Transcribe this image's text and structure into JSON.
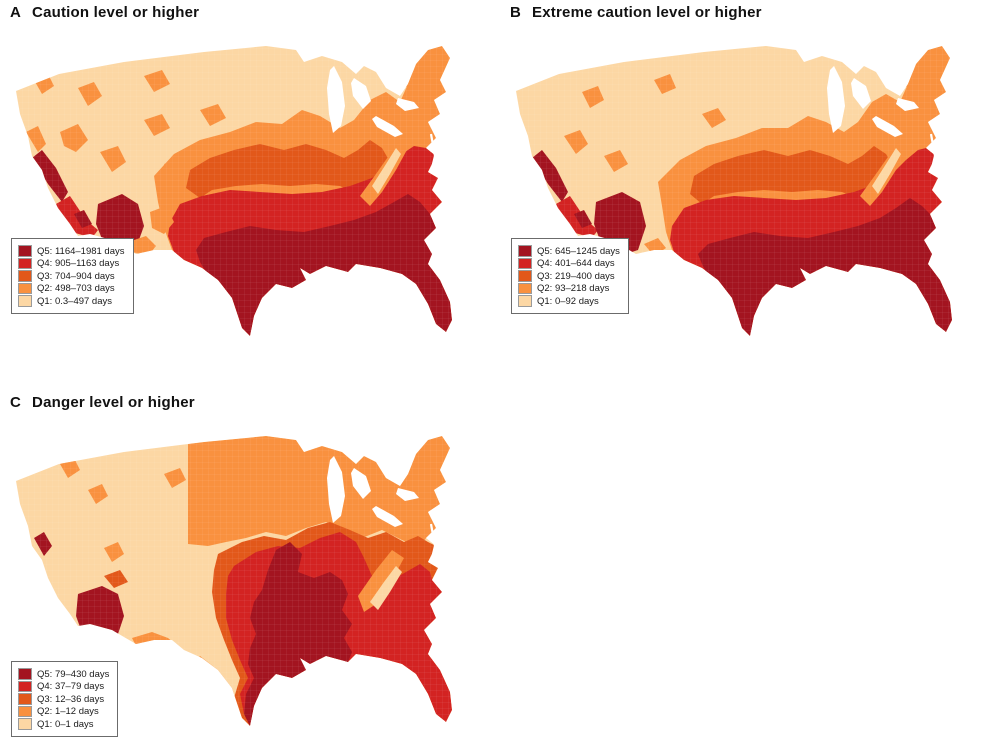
{
  "figure": {
    "background": "#ffffff",
    "colors": {
      "q1": "#fcd7a4",
      "q2": "#f9913f",
      "q3": "#e2581a",
      "q4": "#d32322",
      "q5": "#a31420"
    },
    "panels": [
      {
        "label": "A",
        "title": "Caution level or higher",
        "legend": [
          {
            "quintile": "Q5",
            "label": "Q5: 1164–1981 days",
            "min": 1164,
            "max": 1981,
            "unit": "days"
          },
          {
            "quintile": "Q4",
            "label": "Q4: 905–1163 days",
            "min": 905,
            "max": 1163,
            "unit": "days"
          },
          {
            "quintile": "Q3",
            "label": "Q3: 704–904 days",
            "min": 704,
            "max": 904,
            "unit": "days"
          },
          {
            "quintile": "Q2",
            "label": "Q2: 498–703 days",
            "min": 498,
            "max": 703,
            "unit": "days"
          },
          {
            "quintile": "Q1",
            "label": "Q1: 0.3–497 days",
            "min": 0.3,
            "max": 497,
            "unit": "days"
          }
        ]
      },
      {
        "label": "B",
        "title": "Extreme caution level or higher",
        "legend": [
          {
            "quintile": "Q5",
            "label": "Q5: 645–1245 days",
            "min": 645,
            "max": 1245,
            "unit": "days"
          },
          {
            "quintile": "Q4",
            "label": "Q4: 401–644 days",
            "min": 401,
            "max": 644,
            "unit": "days"
          },
          {
            "quintile": "Q3",
            "label": "Q3: 219–400 days",
            "min": 219,
            "max": 400,
            "unit": "days"
          },
          {
            "quintile": "Q2",
            "label": "Q2: 93–218 days",
            "min": 93,
            "max": 218,
            "unit": "days"
          },
          {
            "quintile": "Q1",
            "label": "Q1: 0–92 days",
            "min": 0,
            "max": 92,
            "unit": "days"
          }
        ]
      },
      {
        "label": "C",
        "title": "Danger level or higher",
        "legend": [
          {
            "quintile": "Q5",
            "label": "Q5: 79–430 days",
            "min": 79,
            "max": 430,
            "unit": "days"
          },
          {
            "quintile": "Q4",
            "label": "Q4: 37–79 days",
            "min": 37,
            "max": 79,
            "unit": "days"
          },
          {
            "quintile": "Q3",
            "label": "Q3: 12–36 days",
            "min": 12,
            "max": 36,
            "unit": "days"
          },
          {
            "quintile": "Q2",
            "label": "Q2: 1–12 days",
            "min": 1,
            "max": 12,
            "unit": "days"
          },
          {
            "quintile": "Q1",
            "label": "Q1: 0–1 days",
            "min": 0,
            "max": 1,
            "unit": "days"
          }
        ]
      }
    ]
  }
}
